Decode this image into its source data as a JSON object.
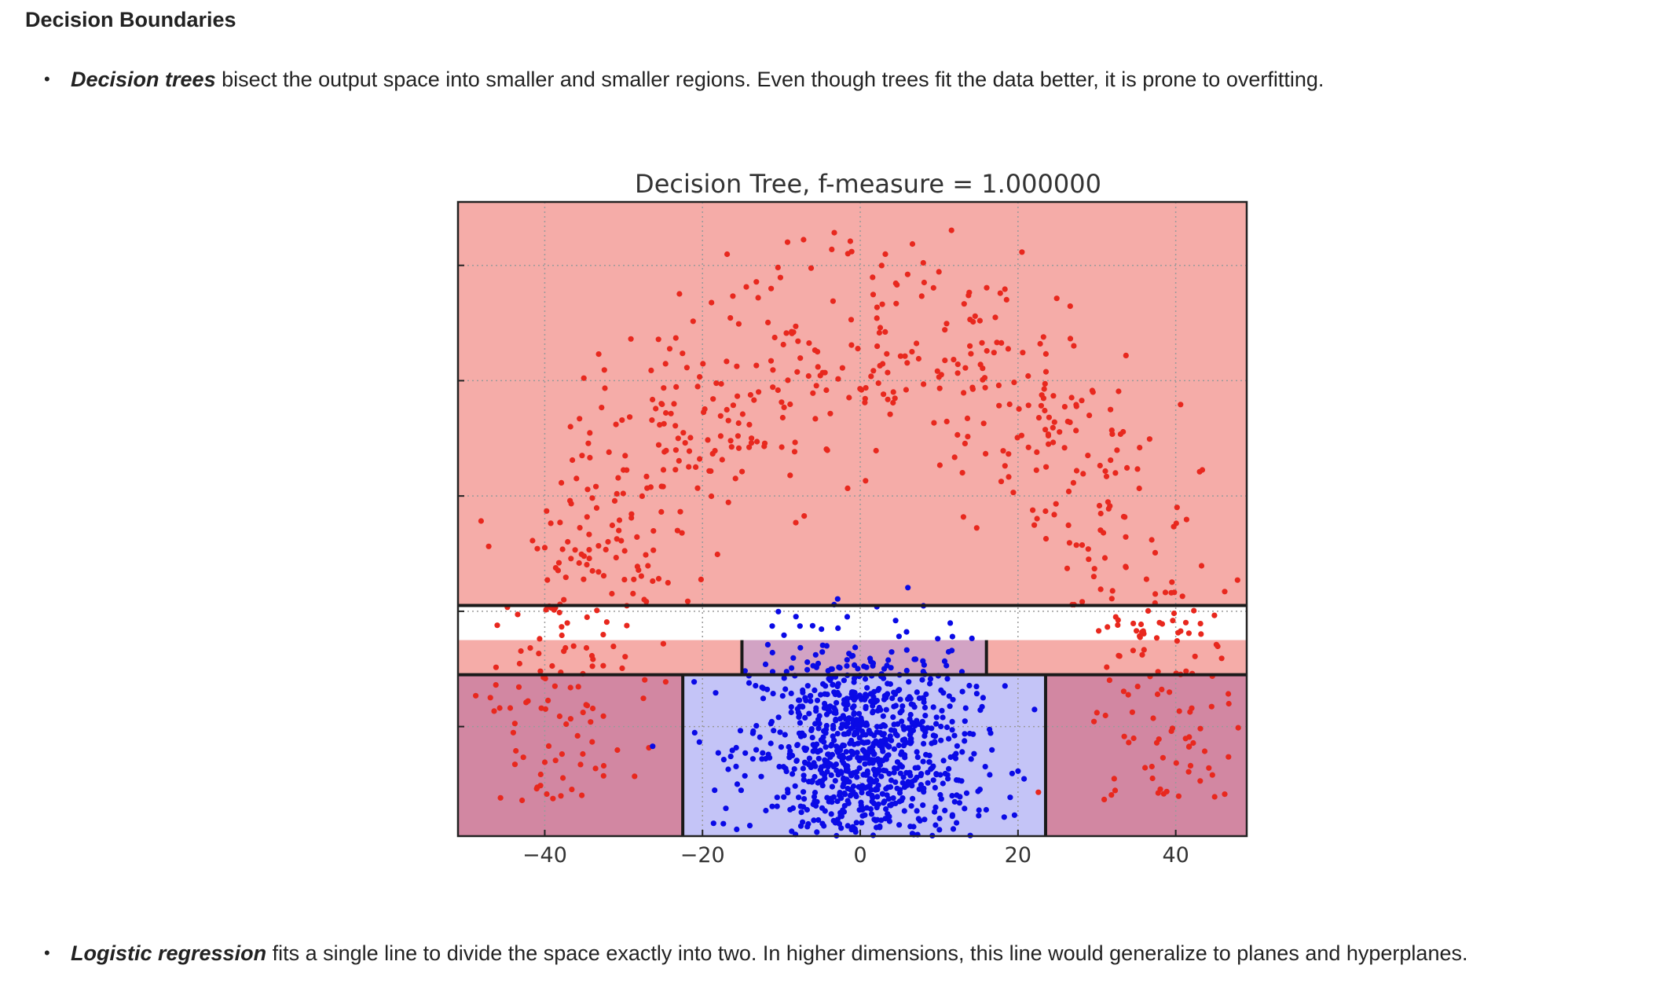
{
  "heading": "Decision Boundaries",
  "bullets": [
    {
      "term": "Decision trees",
      "text": " bisect the output space into smaller and smaller regions. Even though trees fit the data better, it is prone to overfitting."
    },
    {
      "term": "Logistic regression",
      "text": " fits a single line to divide the space exactly into two. In higher dimensions, this line would generalize to planes and hyperplanes."
    }
  ],
  "chart_data": {
    "type": "scatter",
    "title": "Decision Tree, f-measure = 1.000000",
    "xlabel": "",
    "ylabel": "",
    "xlim": [
      -51,
      49
    ],
    "ylim": [
      -3,
      52
    ],
    "x_ticks": [
      -40,
      -20,
      0,
      20,
      40
    ],
    "x_tick_labels": [
      "−40",
      "−20",
      "0",
      "20",
      "40"
    ],
    "y_gridlines": [
      6.5,
      16.5,
      26.5,
      36.5,
      46.5
    ],
    "grid": true,
    "colors": {
      "red_region": "#f5aca8",
      "blue_region": "#c4c4f7",
      "mixed_inner_region": "#d2a3c4",
      "mixed_outer_region": "#d287a2",
      "red_points": "#e8281e",
      "blue_points": "#0a0ae6",
      "boundary": "#1a1a1a"
    },
    "regions": [
      {
        "label": "red",
        "x": [
          -51,
          49
        ],
        "y": [
          17,
          52
        ]
      },
      {
        "label": "red",
        "x": [
          -51,
          -15
        ],
        "y": [
          11,
          14
        ]
      },
      {
        "label": "mixed-inner",
        "x": [
          -15,
          16
        ],
        "y": [
          11,
          14
        ]
      },
      {
        "label": "red",
        "x": [
          16,
          49
        ],
        "y": [
          11,
          14
        ]
      },
      {
        "label": "mixed-outer",
        "x": [
          -51,
          -22.5
        ],
        "y": [
          -3,
          11
        ]
      },
      {
        "label": "blue",
        "x": [
          -22.5,
          23.5
        ],
        "y": [
          -3,
          11
        ]
      },
      {
        "label": "mixed-outer",
        "x": [
          23.5,
          49
        ],
        "y": [
          -3,
          11
        ]
      }
    ],
    "series": [
      {
        "name": "",
        "color": "#e8281e",
        "shape": "semicircle",
        "center": [
          0,
          0
        ],
        "radius": 40,
        "spread": 5,
        "count": 700
      },
      {
        "name": "",
        "color": "#0a0ae6",
        "shape": "gaussian",
        "center": [
          0,
          4
        ],
        "std": [
          7,
          5
        ],
        "count": 1000
      }
    ]
  }
}
